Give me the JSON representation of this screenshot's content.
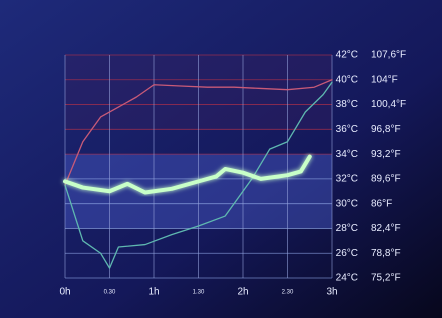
{
  "chart_data": {
    "type": "line",
    "grid": true,
    "xlim": [
      0,
      3
    ],
    "xticks": [
      {
        "value": 0,
        "label": "0h"
      },
      {
        "value": 0.5,
        "label": "0.30"
      },
      {
        "value": 1,
        "label": "1h"
      },
      {
        "value": 1.5,
        "label": "1.30"
      },
      {
        "value": 2,
        "label": "2h"
      },
      {
        "value": 2.5,
        "label": "2.30"
      },
      {
        "value": 3,
        "label": "3h"
      }
    ],
    "ylim": [
      24,
      42
    ],
    "yticks": [
      {
        "value": 24,
        "label": "24°C"
      },
      {
        "value": 26,
        "label": "26°C"
      },
      {
        "value": 28,
        "label": "28°C"
      },
      {
        "value": 30,
        "label": "30°C"
      },
      {
        "value": 32,
        "label": "32°C"
      },
      {
        "value": 34,
        "label": "34°C"
      },
      {
        "value": 36,
        "label": "36°C"
      },
      {
        "value": 38,
        "label": "38°C"
      },
      {
        "value": 40,
        "label": "40°C"
      },
      {
        "value": 42,
        "label": "42°C"
      }
    ],
    "y2lim": [
      75.2,
      107.6
    ],
    "y2ticks": [
      {
        "value": 75.2,
        "label": "75,2°F"
      },
      {
        "value": 78.8,
        "label": "78,8°F"
      },
      {
        "value": 82.4,
        "label": "82,4°F"
      },
      {
        "value": 86,
        "label": "86°F"
      },
      {
        "value": 89.6,
        "label": "89,6°F"
      },
      {
        "value": 93.2,
        "label": "93,2°F"
      },
      {
        "value": 96.8,
        "label": "96,8°F"
      },
      {
        "value": 100.4,
        "label": "100,4°F"
      },
      {
        "value": 104,
        "label": "104°F"
      },
      {
        "value": 107.6,
        "label": "107,6°F"
      }
    ],
    "series": [
      {
        "color": "#c85a78",
        "x": [
          0,
          0.2,
          0.4,
          0.6,
          0.8,
          1.0,
          1.3,
          1.6,
          1.9,
          2.2,
          2.5,
          2.8,
          3.0
        ],
        "values": [
          31.5,
          35,
          37,
          37.8,
          38.6,
          39.6,
          39.5,
          39.4,
          39.4,
          39.3,
          39.2,
          39.4,
          40.0
        ]
      },
      {
        "color": "#5fb8b0",
        "x": [
          0,
          0.2,
          0.4,
          0.5,
          0.6,
          0.9,
          1.2,
          1.5,
          1.8,
          2.1,
          2.3,
          2.5,
          2.7,
          2.9,
          3.0
        ],
        "values": [
          31.5,
          27,
          26,
          24.8,
          26.5,
          26.7,
          27.5,
          28.2,
          29,
          32,
          34.4,
          35,
          37.4,
          38.8,
          39.8
        ]
      },
      {
        "color": "#c8ffc8",
        "x": [
          0,
          0.2,
          0.5,
          0.7,
          0.9,
          1.2,
          1.5,
          1.7,
          1.8,
          2.0,
          2.2,
          2.5,
          2.65,
          2.75
        ],
        "values": [
          31.8,
          31.3,
          31.0,
          31.6,
          30.9,
          31.2,
          31.8,
          32.2,
          32.8,
          32.5,
          32.0,
          32.3,
          32.6,
          33.8
        ]
      }
    ]
  }
}
